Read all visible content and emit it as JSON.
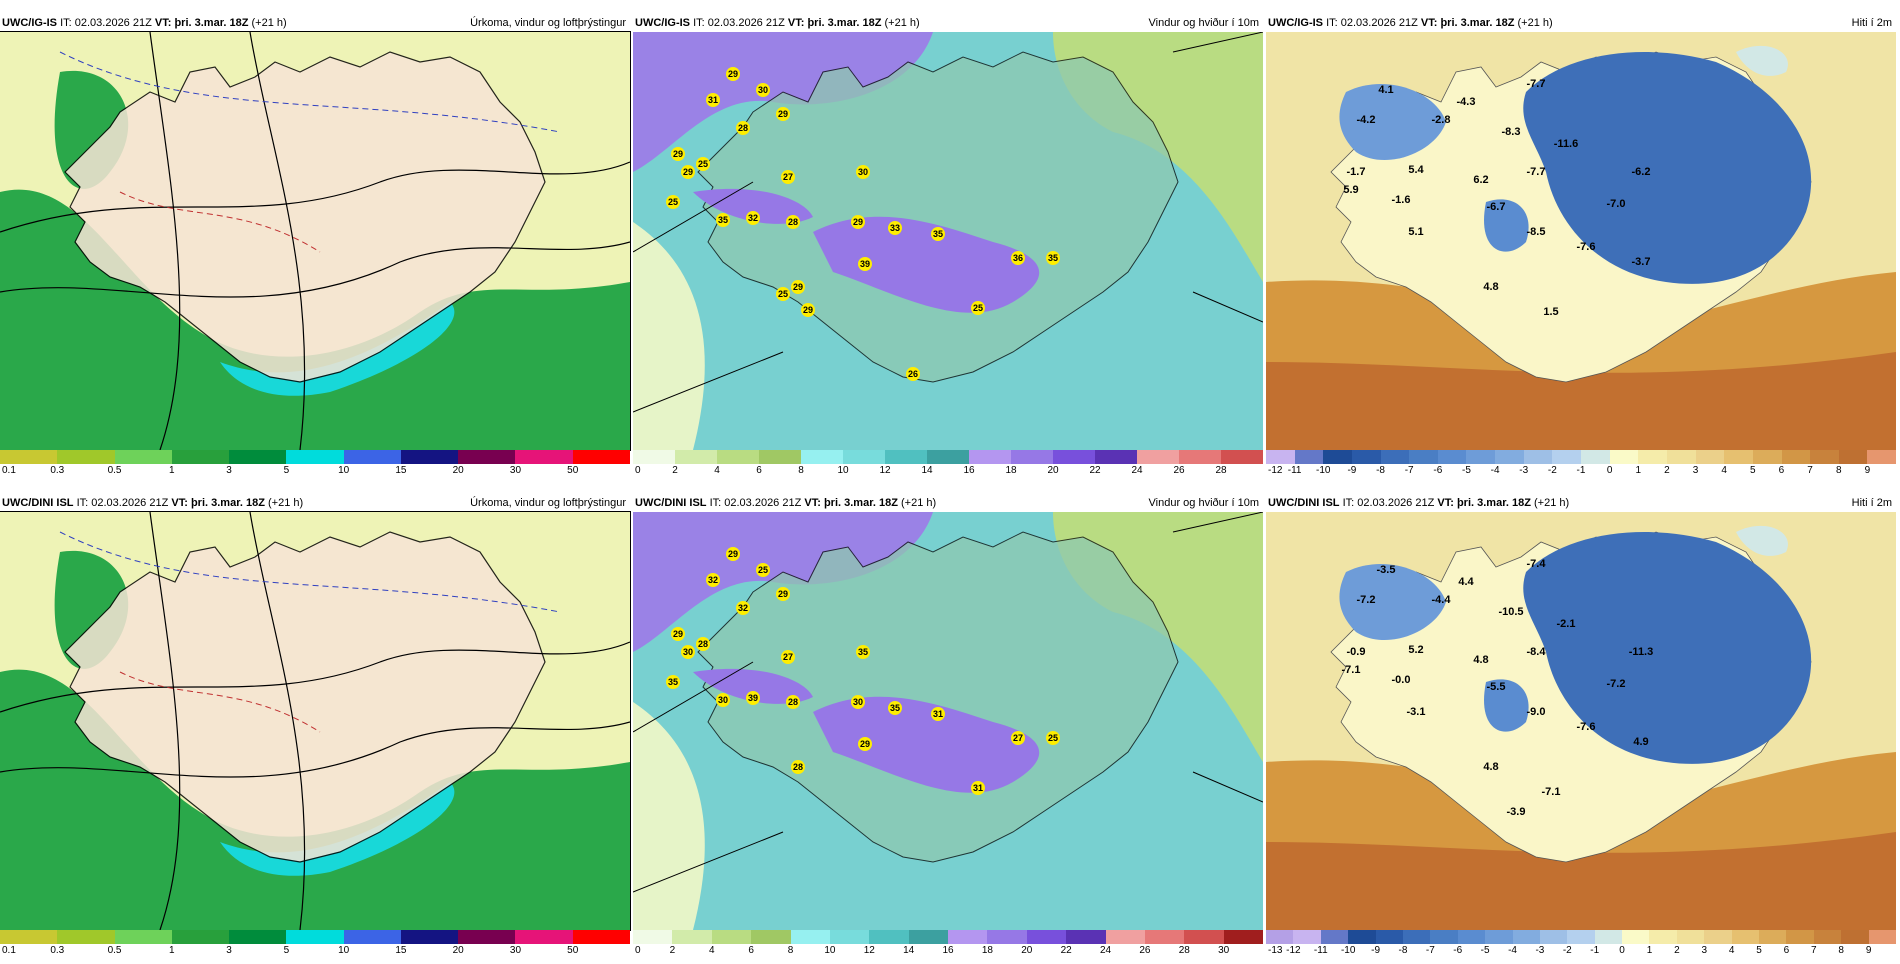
{
  "panels": [
    {
      "model": "UWC/IG-IS",
      "it_label": "IT:",
      "it": "02.03.2026 21Z",
      "vt_label": "VT:",
      "vt": "þri. 3.mar. 18Z",
      "lead": "(+21 h)",
      "title": "Úrkoma, vindur og loftþrýstingur",
      "colorbar_ticks": [
        "0.1",
        "0.3",
        "0.5",
        "1",
        "3",
        "5",
        "10",
        "15",
        "20",
        "30",
        "50"
      ],
      "colorbar_colors": [
        "#c8c832",
        "#a0c82a",
        "#6ed25a",
        "#28a03c",
        "#008c3c",
        "#00dcdc",
        "#3c64e6",
        "#141482",
        "#780050",
        "#e61478",
        "#ff0000"
      ]
    },
    {
      "model": "UWC/IG-IS",
      "it_label": "IT:",
      "it": "02.03.2026 21Z",
      "vt_label": "VT:",
      "vt": "þri. 3.mar. 18Z",
      "lead": "(+21 h)",
      "title": "Vindur og hviður í 10m",
      "colorbar_ticks": [
        "0",
        "2",
        "4",
        "6",
        "8",
        "10",
        "12",
        "14",
        "16",
        "18",
        "20",
        "22",
        "24",
        "26",
        "28"
      ],
      "colorbar_colors": [
        "#f0fae6",
        "#d2ebaa",
        "#b9dc82",
        "#a0c864",
        "#96f0f0",
        "#78dcdc",
        "#50c0c0",
        "#3ca0a0",
        "#b496f0",
        "#9678e6",
        "#7850dc",
        "#5a32b4",
        "#f0a0a0",
        "#e67878",
        "#d25050"
      ],
      "numbers": [
        "29",
        "30",
        "31",
        "29",
        "28",
        "29",
        "25",
        "29",
        "25",
        "27",
        "35",
        "32",
        "28",
        "30",
        "29",
        "33",
        "35",
        "39",
        "36",
        "35",
        "25",
        "29",
        "29",
        "25",
        "26"
      ]
    },
    {
      "model": "UWC/IG-IS",
      "it_label": "IT:",
      "it": "02.03.2026 21Z",
      "vt_label": "VT:",
      "vt": "þri. 3.mar. 18Z",
      "lead": "(+21 h)",
      "title": "Hiti í 2m",
      "colorbar_ticks": [
        "-12",
        "-11",
        "-10",
        "-9",
        "-8",
        "-7",
        "-6",
        "-5",
        "-4",
        "-3",
        "-2",
        "-1",
        "0",
        "1",
        "2",
        "3",
        "4",
        "5",
        "6",
        "7",
        "8",
        "9"
      ],
      "colorbar_colors": [
        "#c8b4f0",
        "#6478c8",
        "#1e4b96",
        "#2a5aa8",
        "#3c6eb9",
        "#4a7ec4",
        "#5a8cd0",
        "#6e9cd8",
        "#82acdf",
        "#9ebfe6",
        "#b4d0ee",
        "#d2e8e6",
        "#fafac8",
        "#f5ecaa",
        "#f0e09a",
        "#ebd08a",
        "#e6c070",
        "#dcac5a",
        "#d29646",
        "#c8823c",
        "#be7032",
        "#e6966e"
      ],
      "numbers": [
        "4.1",
        "-4.2",
        "-2.8",
        "-4.3",
        "-7.7",
        "-8.3",
        "-11.6",
        "-1.7",
        "5.4",
        "6.2",
        "-7.7",
        "-6.2",
        "5.9",
        "-1.6",
        "5.1",
        "-6.7",
        "-7.0",
        "-8.5",
        "-7.6",
        "-3.7",
        "4.8",
        "1.5"
      ]
    },
    {
      "model": "UWC/DINI ISL",
      "it_label": "IT:",
      "it": "02.03.2026 21Z",
      "vt_label": "VT:",
      "vt": "þri. 3.mar. 18Z",
      "lead": "(+21 h)",
      "title": "Úrkoma, vindur og loftþrýstingur",
      "colorbar_ticks": [
        "0.1",
        "0.3",
        "0.5",
        "1",
        "3",
        "5",
        "10",
        "15",
        "20",
        "30",
        "50"
      ],
      "colorbar_colors": [
        "#c8c832",
        "#a0c82a",
        "#6ed25a",
        "#28a03c",
        "#008c3c",
        "#00dcdc",
        "#3c64e6",
        "#141482",
        "#780050",
        "#e61478",
        "#ff0000"
      ]
    },
    {
      "model": "UWC/DINI ISL",
      "it_label": "IT:",
      "it": "02.03.2026 21Z",
      "vt_label": "VT:",
      "vt": "þri. 3.mar. 18Z",
      "lead": "(+21 h)",
      "title": "Vindur og hviður í 10m",
      "colorbar_ticks": [
        "0",
        "2",
        "4",
        "6",
        "8",
        "10",
        "12",
        "14",
        "16",
        "18",
        "20",
        "22",
        "24",
        "26",
        "28",
        "30"
      ],
      "colorbar_colors": [
        "#f0fae6",
        "#d2ebaa",
        "#b9dc82",
        "#a0c864",
        "#96f0f0",
        "#78dcdc",
        "#50c0c0",
        "#3ca0a0",
        "#b496f0",
        "#9678e6",
        "#7850dc",
        "#5a32b4",
        "#f0a0a0",
        "#e67878",
        "#d25050",
        "#a01e1e"
      ],
      "numbers": [
        "29",
        "25",
        "32",
        "29",
        "32",
        "29",
        "28",
        "30",
        "35",
        "27",
        "30",
        "39",
        "28",
        "35",
        "30",
        "35",
        "31",
        "29",
        "27",
        "25",
        "31",
        "28"
      ]
    },
    {
      "model": "UWC/DINI ISL",
      "it_label": "IT:",
      "it": "02.03.2026 21Z",
      "vt_label": "VT:",
      "vt": "þri. 3.mar. 18Z",
      "lead": "(+21 h)",
      "title": "Hiti í 2m",
      "colorbar_ticks": [
        "-13",
        "-12",
        "-11",
        "-10",
        "-9",
        "-8",
        "-7",
        "-6",
        "-5",
        "-4",
        "-3",
        "-2",
        "-1",
        "0",
        "1",
        "2",
        "3",
        "4",
        "5",
        "6",
        "7",
        "8",
        "9"
      ],
      "colorbar_colors": [
        "#b4a0e6",
        "#c8b4f0",
        "#6478c8",
        "#1e4b96",
        "#2a5aa8",
        "#3c6eb9",
        "#4a7ec4",
        "#5a8cd0",
        "#6e9cd8",
        "#82acdf",
        "#9ebfe6",
        "#b4d0ee",
        "#d2e8e6",
        "#fafac8",
        "#f5ecaa",
        "#f0e09a",
        "#ebd08a",
        "#e6c070",
        "#dcac5a",
        "#d29646",
        "#c8823c",
        "#be7032",
        "#e6966e"
      ],
      "numbers": [
        "-3.5",
        "-7.2",
        "-4.4",
        "4.4",
        "-7.4",
        "-10.5",
        "-2.1",
        "-0.9",
        "5.2",
        "4.8",
        "-8.4",
        "-11.3",
        "-7.1",
        "-0.0",
        "-3.1",
        "-5.5",
        "-7.2",
        "-9.0",
        "-7.6",
        "4.9",
        "4.8",
        "-7.1",
        "-3.9"
      ]
    }
  ]
}
